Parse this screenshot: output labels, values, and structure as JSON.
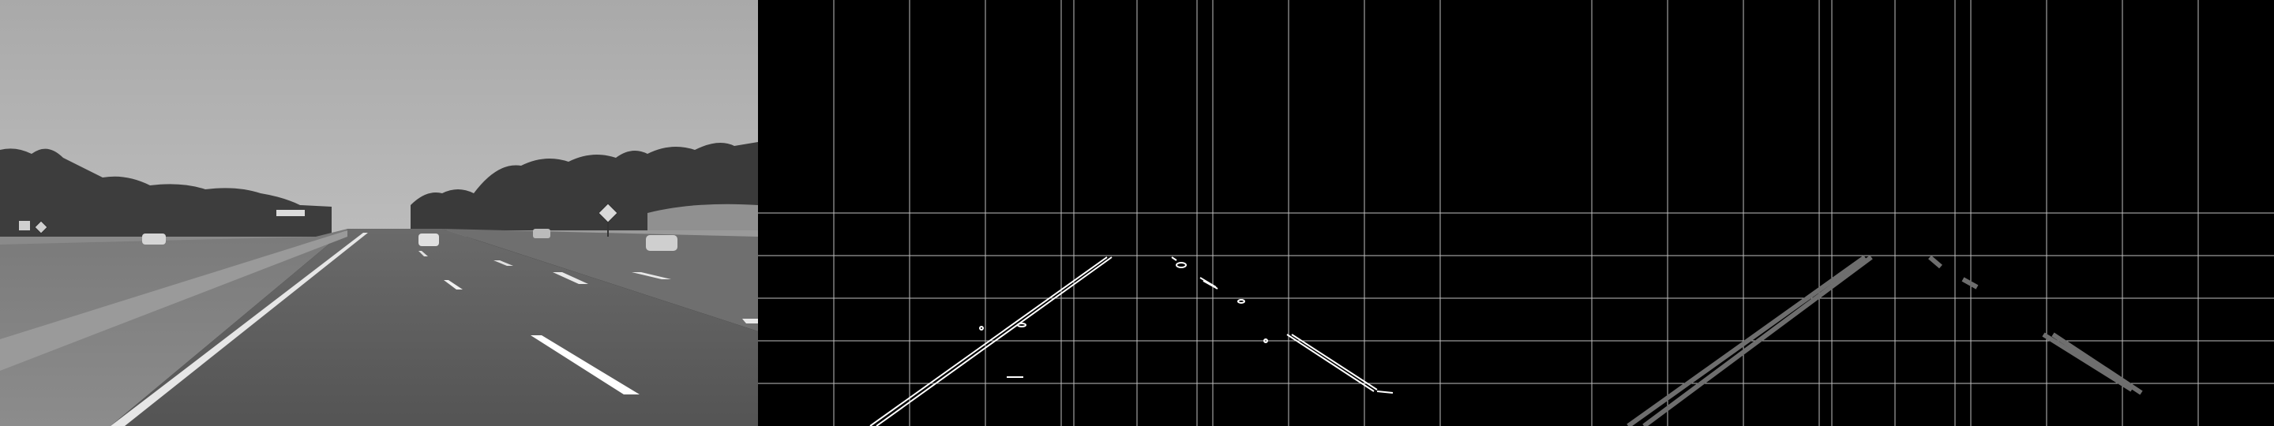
{
  "figure": {
    "panels": [
      {
        "id": "grayscale-road",
        "kind": "grayscale photo"
      },
      {
        "id": "canny-edges",
        "kind": "edge map with grid"
      },
      {
        "id": "hough-lines",
        "kind": "detected line segments with grid"
      }
    ]
  },
  "colors": {
    "background": "#000000",
    "sky": "#b0b0b0",
    "road": "#5e5e5e",
    "edge_white": "#ffffff",
    "grid_line": "#bfbfbf",
    "hough_gray": "#6e6e6e"
  },
  "icons": [
    "road-sign-diamond-icon",
    "car-icon",
    "tree-icon"
  ]
}
